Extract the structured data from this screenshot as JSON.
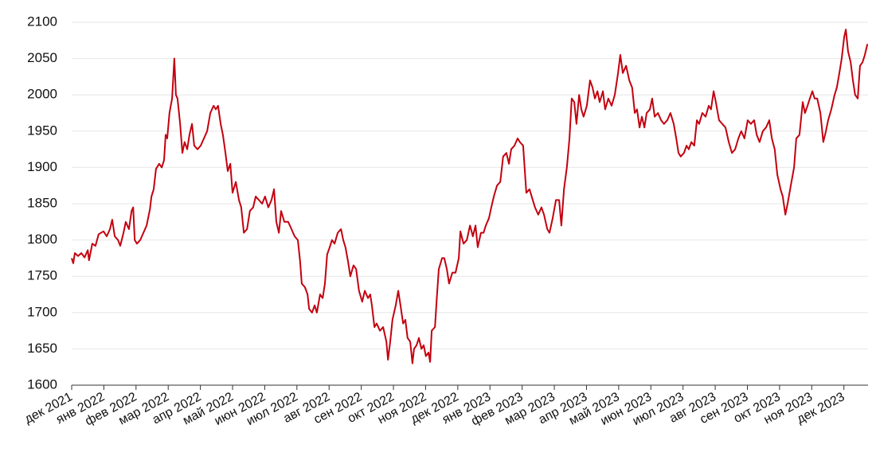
{
  "chart_data": {
    "type": "line",
    "x": [
      0,
      0.05,
      0.1,
      0.2,
      0.3,
      0.4,
      0.5,
      0.54,
      0.64,
      0.74,
      0.84,
      0.99,
      1.09,
      1.19,
      1.26,
      1.34,
      1.44,
      1.51,
      1.61,
      1.68,
      1.78,
      1.86,
      1.91,
      1.96,
      2.03,
      2.13,
      2.23,
      2.33,
      2.43,
      2.48,
      2.55,
      2.62,
      2.72,
      2.8,
      2.87,
      2.92,
      2.97,
      3.04,
      3.12,
      3.19,
      3.24,
      3.29,
      3.37,
      3.44,
      3.51,
      3.59,
      3.66,
      3.74,
      3.81,
      3.91,
      4.01,
      4.11,
      4.21,
      4.31,
      4.41,
      4.48,
      4.55,
      4.63,
      4.7,
      4.78,
      4.85,
      4.93,
      5.0,
      5.1,
      5.2,
      5.27,
      5.35,
      5.45,
      5.54,
      5.64,
      5.72,
      5.82,
      5.92,
      6.01,
      6.11,
      6.21,
      6.29,
      6.36,
      6.44,
      6.51,
      6.61,
      6.73,
      6.83,
      6.93,
      7.03,
      7.1,
      7.15,
      7.25,
      7.33,
      7.38,
      7.47,
      7.55,
      7.62,
      7.72,
      7.8,
      7.87,
      7.94,
      8.02,
      8.09,
      8.17,
      8.27,
      8.37,
      8.44,
      8.51,
      8.59,
      8.66,
      8.76,
      8.84,
      8.93,
      9.03,
      9.11,
      9.21,
      9.28,
      9.33,
      9.41,
      9.48,
      9.58,
      9.68,
      9.78,
      9.83,
      9.9,
      9.97,
      10.07,
      10.15,
      10.22,
      10.3,
      10.37,
      10.44,
      10.52,
      10.59,
      10.64,
      10.72,
      10.79,
      10.87,
      10.94,
      11.01,
      11.09,
      11.14,
      11.19,
      11.29,
      11.34,
      11.41,
      11.51,
      11.58,
      11.66,
      11.73,
      11.83,
      11.93,
      12.03,
      12.08,
      12.18,
      12.28,
      12.38,
      12.47,
      12.55,
      12.62,
      12.72,
      12.8,
      12.87,
      12.97,
      13.04,
      13.12,
      13.22,
      13.32,
      13.41,
      13.51,
      13.59,
      13.66,
      13.76,
      13.86,
      13.93,
      14.03,
      14.13,
      14.23,
      14.33,
      14.4,
      14.5,
      14.6,
      14.68,
      14.78,
      14.85,
      14.95,
      15.05,
      15.15,
      15.22,
      15.3,
      15.39,
      15.47,
      15.54,
      15.62,
      15.69,
      15.77,
      15.84,
      15.91,
      16.01,
      16.11,
      16.19,
      16.26,
      16.34,
      16.41,
      16.51,
      16.58,
      16.68,
      16.78,
      16.88,
      16.98,
      17.05,
      17.13,
      17.23,
      17.33,
      17.42,
      17.5,
      17.57,
      17.65,
      17.72,
      17.8,
      17.87,
      17.97,
      18.04,
      18.12,
      18.22,
      18.32,
      18.41,
      18.51,
      18.61,
      18.71,
      18.79,
      18.86,
      18.93,
      19.03,
      19.11,
      19.18,
      19.26,
      19.35,
      19.43,
      19.5,
      19.6,
      19.7,
      19.8,
      19.87,
      19.95,
      20.02,
      20.12,
      20.22,
      20.32,
      20.42,
      20.52,
      20.62,
      20.72,
      20.81,
      20.91,
      21.01,
      21.11,
      21.21,
      21.29,
      21.38,
      21.48,
      21.58,
      21.68,
      21.76,
      21.85,
      21.93,
      22.03,
      22.1,
      22.18,
      22.25,
      22.35,
      22.45,
      22.52,
      22.62,
      22.72,
      22.79,
      22.87,
      22.94,
      23.02,
      23.09,
      23.17,
      23.27,
      23.36,
      23.44,
      23.51,
      23.61,
      23.71,
      23.78,
      23.86,
      23.93,
      24.01,
      24.06,
      24.13,
      24.21,
      24.28,
      24.35,
      24.43,
      24.5,
      24.58,
      24.65,
      24.73
    ],
    "series": [
      {
        "color": "#c3000f",
        "values": [
          1775,
          1768,
          1782,
          1778,
          1782,
          1776,
          1786,
          1772,
          1795,
          1792,
          1808,
          1812,
          1805,
          1815,
          1828,
          1805,
          1800,
          1792,
          1810,
          1825,
          1815,
          1840,
          1845,
          1800,
          1795,
          1800,
          1810,
          1820,
          1842,
          1860,
          1870,
          1898,
          1905,
          1900,
          1910,
          1945,
          1940,
          1975,
          1995,
          2050,
          2000,
          1995,
          1960,
          1920,
          1935,
          1925,
          1945,
          1960,
          1930,
          1925,
          1930,
          1940,
          1950,
          1975,
          1985,
          1980,
          1985,
          1960,
          1945,
          1920,
          1895,
          1905,
          1865,
          1880,
          1855,
          1845,
          1810,
          1815,
          1840,
          1845,
          1860,
          1855,
          1850,
          1860,
          1845,
          1855,
          1870,
          1825,
          1810,
          1840,
          1825,
          1825,
          1815,
          1805,
          1800,
          1770,
          1740,
          1735,
          1725,
          1705,
          1700,
          1710,
          1700,
          1725,
          1720,
          1740,
          1780,
          1790,
          1800,
          1795,
          1810,
          1815,
          1800,
          1790,
          1770,
          1750,
          1765,
          1760,
          1730,
          1715,
          1730,
          1720,
          1725,
          1710,
          1680,
          1685,
          1675,
          1680,
          1660,
          1635,
          1660,
          1690,
          1710,
          1730,
          1710,
          1685,
          1690,
          1665,
          1660,
          1630,
          1650,
          1655,
          1665,
          1650,
          1655,
          1640,
          1645,
          1632,
          1675,
          1680,
          1715,
          1760,
          1775,
          1775,
          1760,
          1740,
          1755,
          1755,
          1775,
          1812,
          1795,
          1800,
          1820,
          1805,
          1820,
          1790,
          1810,
          1810,
          1820,
          1830,
          1845,
          1860,
          1875,
          1880,
          1915,
          1920,
          1905,
          1925,
          1930,
          1940,
          1935,
          1930,
          1865,
          1870,
          1855,
          1845,
          1835,
          1845,
          1835,
          1815,
          1810,
          1830,
          1855,
          1855,
          1820,
          1870,
          1900,
          1940,
          1995,
          1990,
          1960,
          2000,
          1980,
          1970,
          1985,
          2020,
          2010,
          1995,
          2005,
          1990,
          2005,
          1980,
          1995,
          1985,
          2000,
          2030,
          2055,
          2030,
          2040,
          2020,
          2010,
          1975,
          1980,
          1955,
          1970,
          1955,
          1975,
          1980,
          1995,
          1970,
          1975,
          1965,
          1960,
          1965,
          1975,
          1960,
          1940,
          1920,
          1915,
          1920,
          1930,
          1925,
          1935,
          1930,
          1965,
          1960,
          1975,
          1970,
          1985,
          1980,
          2005,
          1990,
          1965,
          1960,
          1955,
          1935,
          1920,
          1925,
          1940,
          1950,
          1940,
          1965,
          1960,
          1965,
          1945,
          1935,
          1950,
          1955,
          1965,
          1940,
          1925,
          1890,
          1870,
          1860,
          1835,
          1850,
          1875,
          1900,
          1940,
          1945,
          1990,
          1975,
          1985,
          1995,
          2005,
          1995,
          1995,
          1975,
          1935,
          1950,
          1965,
          1980,
          2000,
          2010,
          2030,
          2050,
          2080,
          2090,
          2060,
          2045,
          2020,
          2000,
          1995,
          2040,
          2045,
          2055,
          2070
        ]
      }
    ],
    "xlim": [
      0,
      24.75
    ],
    "xticks": [
      {
        "value": 0,
        "label": "дек 2021"
      },
      {
        "value": 1,
        "label": "янв 2022"
      },
      {
        "value": 2,
        "label": "фев 2022"
      },
      {
        "value": 3,
        "label": "мар 2022"
      },
      {
        "value": 4,
        "label": "апр 2022"
      },
      {
        "value": 5,
        "label": "май 2022"
      },
      {
        "value": 6,
        "label": "июн 2022"
      },
      {
        "value": 7,
        "label": "июл 2022"
      },
      {
        "value": 8,
        "label": "авг 2022"
      },
      {
        "value": 9,
        "label": "сен 2022"
      },
      {
        "value": 10,
        "label": "окт 2022"
      },
      {
        "value": 11,
        "label": "ноя 2022"
      },
      {
        "value": 12,
        "label": "дек 2022"
      },
      {
        "value": 13,
        "label": "янв 2023"
      },
      {
        "value": 14,
        "label": "фев 2023"
      },
      {
        "value": 15,
        "label": "мар 2023"
      },
      {
        "value": 16,
        "label": "апр 2023"
      },
      {
        "value": 17,
        "label": "май 2023"
      },
      {
        "value": 18,
        "label": "июн 2023"
      },
      {
        "value": 19,
        "label": "июл 2023"
      },
      {
        "value": 20,
        "label": "авг 2023"
      },
      {
        "value": 21,
        "label": "сен 2023"
      },
      {
        "value": 22,
        "label": "окт 2023"
      },
      {
        "value": 23,
        "label": "ноя 2023"
      },
      {
        "value": 24,
        "label": "дек 2023"
      }
    ],
    "ylim": [
      1600,
      2100
    ],
    "yticks": [
      1600,
      1650,
      1700,
      1750,
      1800,
      1850,
      1900,
      1950,
      2000,
      2050,
      2100
    ],
    "grid": true
  }
}
